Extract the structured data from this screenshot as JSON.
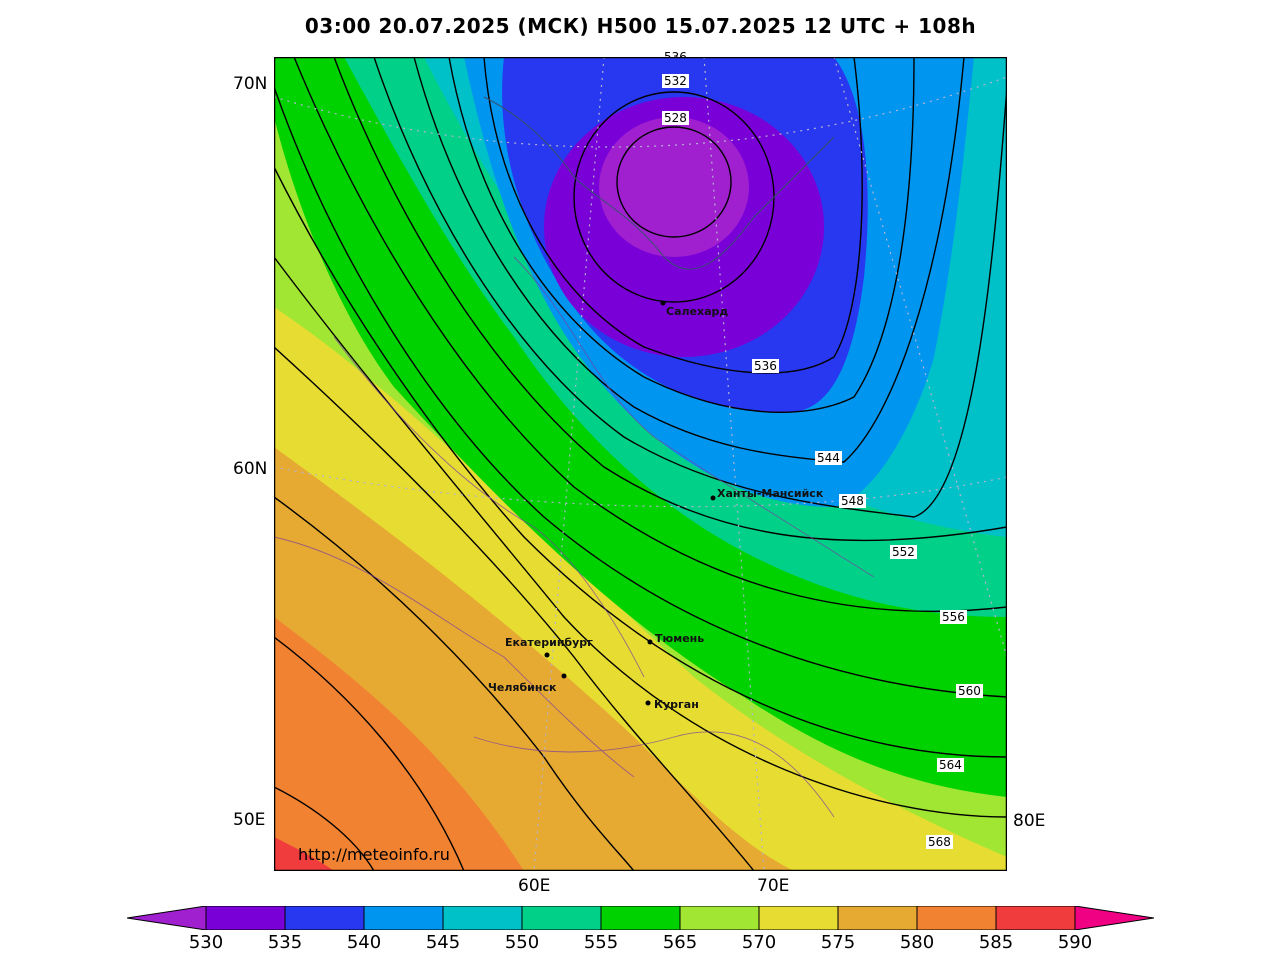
{
  "title": "03:00 20.07.2025 (МСК) H500  15.07.2025 12 UTC + 108h",
  "url": "http://meteoinfo.ru",
  "lat_labels": [
    "70N",
    "60N",
    "50E"
  ],
  "lon_labels": [
    "60E",
    "70E",
    "80E"
  ],
  "cities": [
    "Салехард",
    "Ханты-Мансийск",
    "Екатеринбург",
    "Тюмень",
    "Челябинск",
    "Курган"
  ],
  "contour_labels": [
    "536",
    "532",
    "528",
    "536",
    "544",
    "548",
    "552",
    "556",
    "560",
    "564",
    "568"
  ],
  "legend": {
    "labels": [
      "530",
      "535",
      "540",
      "545",
      "550",
      "555",
      "565",
      "570",
      "575",
      "580",
      "585",
      "590"
    ],
    "colors": [
      "#a020d0",
      "#7a00d8",
      "#2838f0",
      "#0096f0",
      "#00c0c8",
      "#00d088",
      "#00d200",
      "#a0e632",
      "#e6dc32",
      "#e6aa32",
      "#f08232",
      "#f03c3c",
      "#f00082"
    ]
  }
}
